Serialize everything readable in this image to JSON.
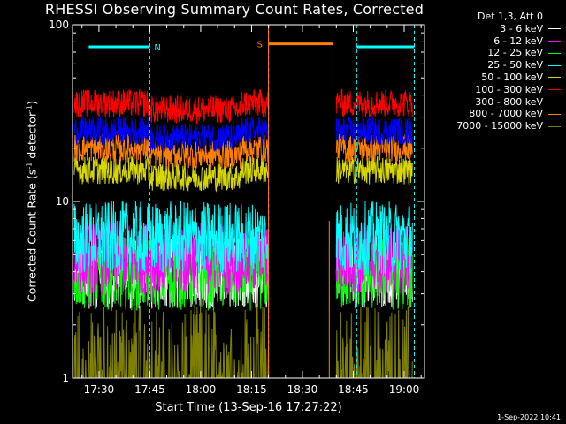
{
  "chart_data": {
    "type": "line",
    "title": "RHESSI Observing Summary Count Rates, Corrected",
    "xlabel": "Start Time (13-Sep-16 17:27:22)",
    "ylabel_main": "Corrected Count Rate (s",
    "ylabel_sup1": "-1",
    "ylabel_mid": " detector",
    "ylabel_sup2": "-1",
    "ylabel_end": ")",
    "yscale": "log",
    "ylim": [
      1,
      100
    ],
    "xlim_minutes": [
      17.37,
      19.1
    ],
    "x_ticks": [
      "17:30",
      "17:45",
      "18:00",
      "18:15",
      "18:30",
      "18:45",
      "19:00"
    ],
    "y_ticks": [
      "1",
      "10",
      "100"
    ],
    "legend_header": "Det 1,3, Att 0",
    "legend_location": "top-right outside",
    "timestamp": "1-Sep-2022 10:41",
    "data_gaps": [
      [
        "18:20",
        "18:40"
      ]
    ],
    "flags": [
      {
        "label": "N",
        "start": "17:27",
        "end": "17:45",
        "level": 75,
        "color": "#00ffff"
      },
      {
        "label": "S",
        "start": "18:20",
        "end": "18:39",
        "level": 78,
        "color": "#ff8000"
      },
      {
        "label": "",
        "start": "18:46",
        "end": "19:03",
        "level": 75,
        "color": "#00ffff"
      }
    ],
    "markers": [
      {
        "time": "17:45",
        "color": "#00ffff"
      },
      {
        "time": "18:20",
        "color": "#ff8000"
      },
      {
        "time": "18:39",
        "color": "#ff8000"
      },
      {
        "time": "18:46",
        "color": "#00ffff"
      },
      {
        "time": "19:03",
        "color": "#00ffff"
      }
    ],
    "series": [
      {
        "name": "3 - 6 keV",
        "color": "#ffffff",
        "level": 4.0
      },
      {
        "name": "6 - 12 keV",
        "color": "#ff00ff",
        "level": 4.8
      },
      {
        "name": "12 - 25 keV",
        "color": "#00ff00",
        "level": 3.9
      },
      {
        "name": "25 - 50 keV",
        "color": "#00ffff",
        "level": 6.2
      },
      {
        "name": "50 - 100 keV",
        "color": "#d8d800",
        "level": 15
      },
      {
        "name": "100 - 300 keV",
        "color": "#ff0000",
        "level": 36
      },
      {
        "name": "300 - 800 keV",
        "color": "#0000ff",
        "level": 25
      },
      {
        "name": "800 - 7000 keV",
        "color": "#ff8000",
        "level": 20
      },
      {
        "name": "7000 - 15000 keV",
        "color": "#808000",
        "level": 1.4
      }
    ]
  }
}
